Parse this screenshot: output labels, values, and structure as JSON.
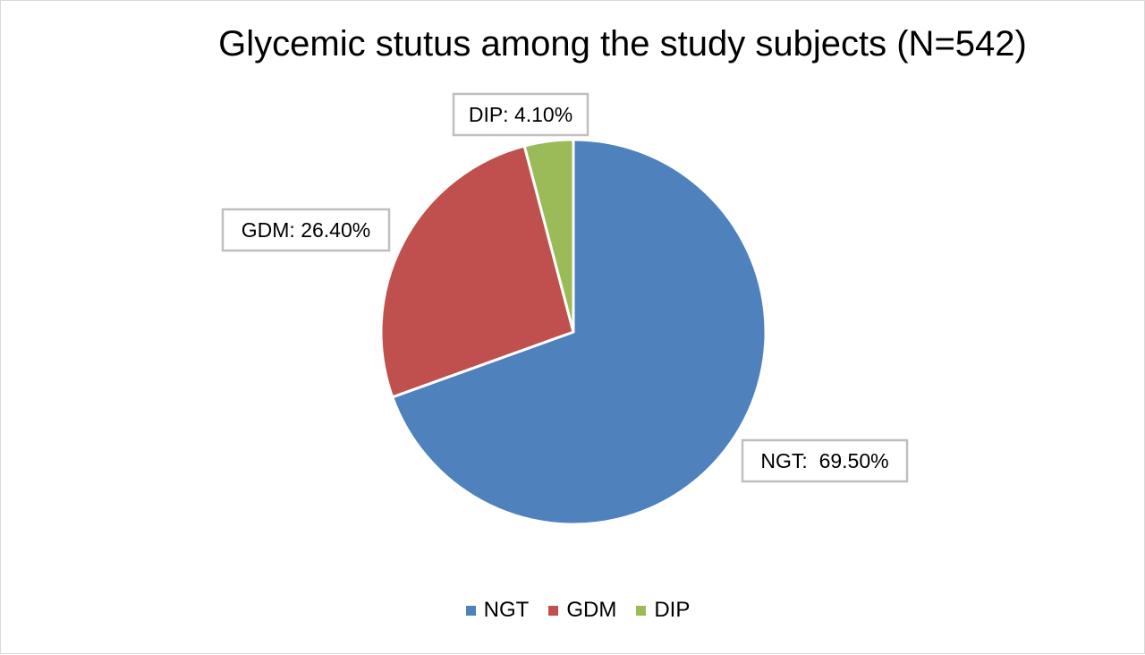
{
  "chart_data": {
    "type": "pie",
    "title": "Glycemic stutus among the study subjects (N=542)",
    "categories": [
      "NGT",
      "GDM",
      "DIP"
    ],
    "values": [
      69.5,
      26.4,
      4.1
    ],
    "unit": "%",
    "data_labels": [
      "NGT:  69.50%",
      "GDM: 26.40%",
      "DIP: 4.10%"
    ],
    "colors": [
      "#4f81bd",
      "#c0504d",
      "#9bbb59"
    ],
    "legend_position": "bottom",
    "legend": [
      "NGT",
      "GDM",
      "DIP"
    ]
  }
}
